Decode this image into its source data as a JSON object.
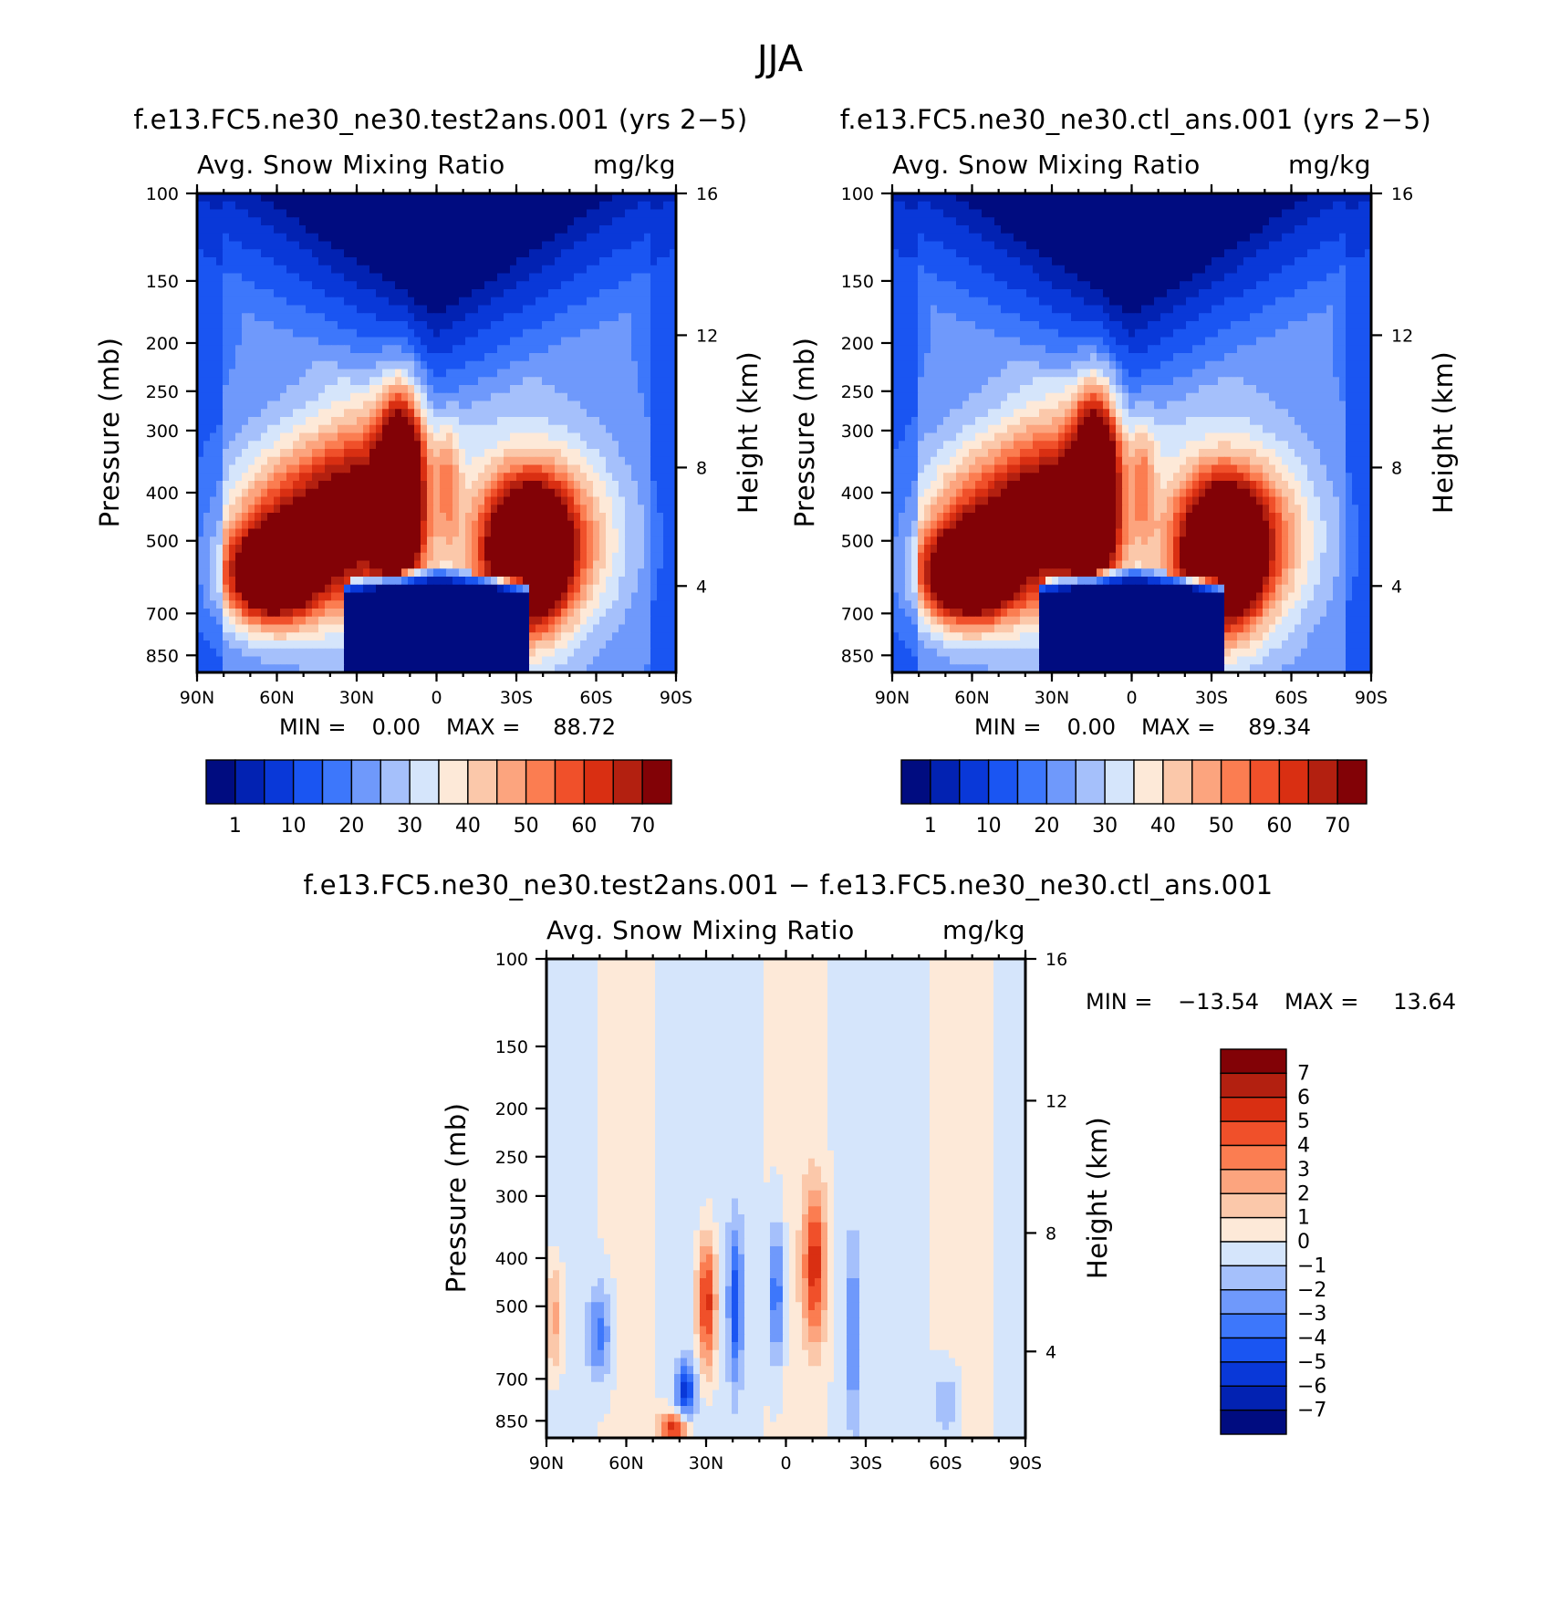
{
  "figure": {
    "title": "JJA",
    "diff_title": "f.e13.FC5.ne30_ne30.test2ans.001  −  f.e13.FC5.ne30_ne30.ctl_ans.001"
  },
  "colors": {
    "abs_palette": [
      "#000c80",
      "#0222b2",
      "#0938d8",
      "#1a55f2",
      "#3d77fb",
      "#6f99fb",
      "#a5c0fb",
      "#d5e5fb",
      "#fde9d8",
      "#fbc8aa",
      "#fca47e",
      "#fb7d51",
      "#f0502a",
      "#d92f12",
      "#b32010",
      "#820206"
    ],
    "diff_palette": [
      "#000c80",
      "#0222b2",
      "#0938d8",
      "#1a55f2",
      "#3d77fb",
      "#6f99fb",
      "#a5c0fb",
      "#d5e5fb",
      "#fde9d8",
      "#fbc8aa",
      "#fca47e",
      "#fb7d51",
      "#f0502a",
      "#d92f12",
      "#b32010",
      "#820206"
    ]
  },
  "chart_data": [
    {
      "type": "heatmap",
      "title": "f.e13.FC5.ne30_ne30.test2ans.001 (yrs 2−5)",
      "field": "Avg. Snow Mixing Ratio",
      "units": "mg/kg",
      "xlabel": "",
      "ylabel": "Pressure (mb)",
      "y2label": "Height (km)",
      "x_ticks": [
        "90N",
        "60N",
        "30N",
        "0",
        "30S",
        "60S",
        "90S"
      ],
      "y_ticks": [
        "100",
        "150",
        "200",
        "250",
        "300",
        "400",
        "500",
        "700",
        "850"
      ],
      "y2_ticks": [
        "16",
        "12",
        "8",
        "4"
      ],
      "min_label": "MIN =",
      "min": "0.00",
      "max_label": "MAX =",
      "max": "88.72",
      "colorbar_levels": [
        "1",
        "10",
        "20",
        "30",
        "40",
        "50",
        "60",
        "70"
      ]
    },
    {
      "type": "heatmap",
      "title": "f.e13.FC5.ne30_ne30.ctl_ans.001 (yrs 2−5)",
      "field": "Avg. Snow Mixing Ratio",
      "units": "mg/kg",
      "xlabel": "",
      "ylabel": "Pressure (mb)",
      "y2label": "Height (km)",
      "x_ticks": [
        "90N",
        "60N",
        "30N",
        "0",
        "30S",
        "60S",
        "90S"
      ],
      "y_ticks": [
        "100",
        "150",
        "200",
        "250",
        "300",
        "400",
        "500",
        "700",
        "850"
      ],
      "y2_ticks": [
        "16",
        "12",
        "8",
        "4"
      ],
      "min_label": "MIN =",
      "min": "0.00",
      "max_label": "MAX =",
      "max": "89.34",
      "colorbar_levels": [
        "1",
        "10",
        "20",
        "30",
        "40",
        "50",
        "60",
        "70"
      ]
    },
    {
      "type": "heatmap",
      "title": "",
      "field": "Avg. Snow Mixing Ratio",
      "units": "mg/kg",
      "xlabel": "",
      "ylabel": "Pressure (mb)",
      "y2label": "Height (km)",
      "x_ticks": [
        "90N",
        "60N",
        "30N",
        "0",
        "30S",
        "60S",
        "90S"
      ],
      "y_ticks": [
        "100",
        "150",
        "200",
        "250",
        "300",
        "400",
        "500",
        "700",
        "850"
      ],
      "y2_ticks": [
        "16",
        "12",
        "8",
        "4"
      ],
      "min_label": "MIN =",
      "min": "−13.54",
      "max_label": "MAX =",
      "max": "13.64",
      "colorbar_levels": [
        "7",
        "6",
        "5",
        "4",
        "3",
        "2",
        "1",
        "0",
        "−1",
        "−2",
        "−3",
        "−4",
        "−5",
        "−6",
        "−7"
      ]
    }
  ]
}
